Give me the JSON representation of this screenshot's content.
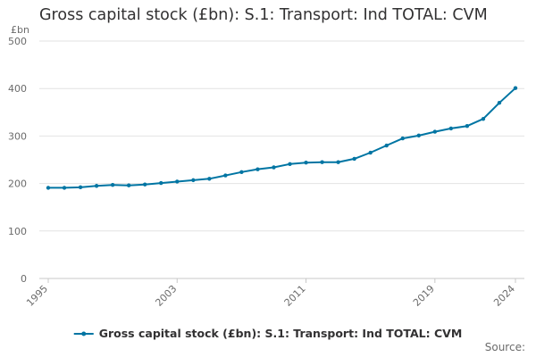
{
  "chart_data": {
    "type": "line",
    "title": "Gross capital stock (£bn): S.1: Transport: Ind TOTAL: CVM",
    "ylabel": "£bn",
    "xlabel": "",
    "ylim": [
      0,
      500
    ],
    "xlim": [
      1995,
      2024
    ],
    "y_ticks": [
      "0",
      "100",
      "200",
      "300",
      "400",
      "500"
    ],
    "x_ticks": [
      "1995",
      "2003",
      "2011",
      "2019",
      "2024"
    ],
    "grid": true,
    "legend_position": "bottom",
    "series": [
      {
        "name": "Gross capital stock (£bn): S.1: Transport: Ind TOTAL: CVM",
        "color": "#0075a3",
        "x": [
          1995,
          1996,
          1997,
          1998,
          1999,
          2000,
          2001,
          2002,
          2003,
          2004,
          2005,
          2006,
          2007,
          2008,
          2009,
          2010,
          2011,
          2012,
          2013,
          2014,
          2015,
          2016,
          2017,
          2018,
          2019,
          2020,
          2021,
          2022,
          2023,
          2024
        ],
        "values": [
          191,
          191,
          192,
          195,
          197,
          196,
          198,
          201,
          204,
          207,
          210,
          217,
          224,
          230,
          234,
          241,
          244,
          245,
          245,
          252,
          265,
          280,
          295,
          301,
          309,
          316,
          321,
          336,
          370,
          401
        ]
      }
    ]
  },
  "source_label": "Source:"
}
